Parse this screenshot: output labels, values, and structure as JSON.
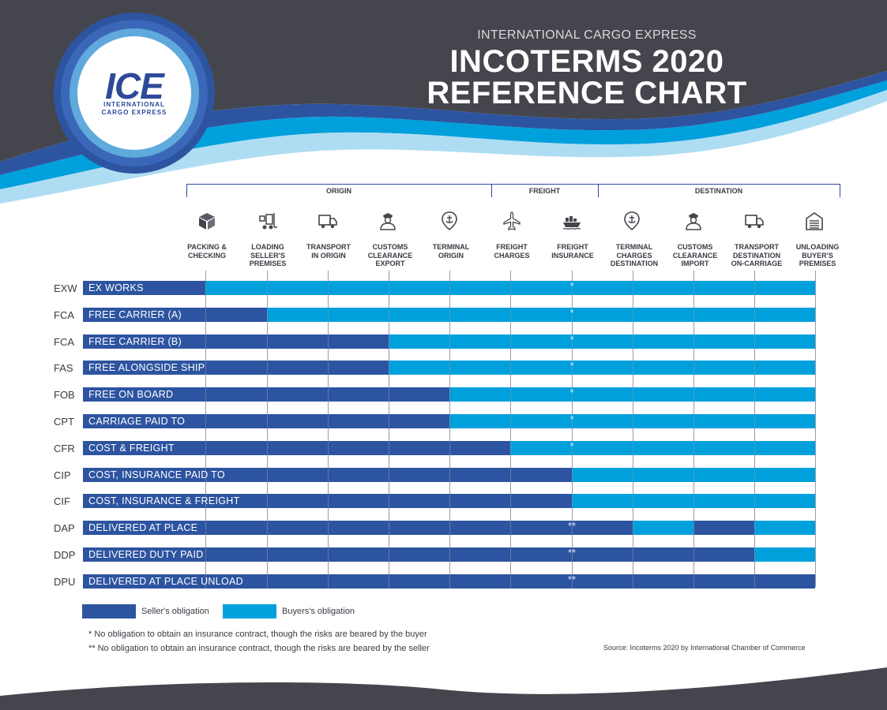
{
  "header": {
    "company": "INTERNATIONAL CARGO EXPRESS",
    "title_line1": "INCOTERMS 2020",
    "title_line2": "REFERENCE CHART"
  },
  "logo": {
    "main": "ICE",
    "sub_line1": "INTERNATIONAL",
    "sub_line2": "CARGO EXPRESS"
  },
  "colors": {
    "seller": "#2d54a0",
    "buyer": "#00a0dc",
    "header_bg": "#45464d",
    "accent_light": "#7fc6ea"
  },
  "groups": [
    {
      "label": "ORIGIN"
    },
    {
      "label": "FREIGHT"
    },
    {
      "label": "DESTINATION"
    }
  ],
  "columns": [
    {
      "label": "PACKING &\nCHECKING",
      "icon": "package-icon"
    },
    {
      "label": "LOADING\nSELLER'S\nPREMISES",
      "icon": "forklift-icon"
    },
    {
      "label": "TRANSPORT\nIN ORIGIN",
      "icon": "truck-icon"
    },
    {
      "label": "CUSTOMS\nCLEARANCE\nEXPORT",
      "icon": "customs-officer-icon"
    },
    {
      "label": "TERMINAL\nORIGIN",
      "icon": "location-anchor-icon"
    },
    {
      "label": "FREIGHT\nCHARGES",
      "icon": "airplane-icon"
    },
    {
      "label": "FREIGHT\nINSURANCE",
      "icon": "ship-icon"
    },
    {
      "label": "TERMINAL\nCHARGES\nDESTINATION",
      "icon": "location-anchor-icon"
    },
    {
      "label": "CUSTOMS\nCLEARANCE\nIMPORT",
      "icon": "customs-officer-icon"
    },
    {
      "label": "TRANSPORT\nDESTINATION\nON-CARRIAGE",
      "icon": "truck-icon"
    },
    {
      "label": "UNLOADING\nBUYER'S\nPREMISES",
      "icon": "warehouse-icon"
    }
  ],
  "rows": [
    {
      "code": "EXW",
      "name": "EX WORKS",
      "mark": "*",
      "cells": [
        "S",
        "B",
        "B",
        "B",
        "B",
        "B",
        "B",
        "B",
        "B",
        "B",
        "B"
      ]
    },
    {
      "code": "FCA",
      "name": "FREE CARRIER (A)",
      "mark": "*",
      "cells": [
        "S",
        "S",
        "B",
        "B",
        "B",
        "B",
        "B",
        "B",
        "B",
        "B",
        "B"
      ]
    },
    {
      "code": "FCA",
      "name": "FREE CARRIER (B)",
      "mark": "*",
      "cells": [
        "S",
        "S",
        "S",
        "S",
        "B",
        "B",
        "B",
        "B",
        "B",
        "B",
        "B"
      ]
    },
    {
      "code": "FAS",
      "name": "FREE ALONGSIDE SHIP",
      "mark": "*",
      "cells": [
        "S",
        "S",
        "S",
        "S",
        "B",
        "B",
        "B",
        "B",
        "B",
        "B",
        "B"
      ]
    },
    {
      "code": "FOB",
      "name": "FREE ON BOARD",
      "mark": "*",
      "cells": [
        "S",
        "S",
        "S",
        "S",
        "S",
        "B",
        "B",
        "B",
        "B",
        "B",
        "B"
      ]
    },
    {
      "code": "CPT",
      "name": "CARRIAGE PAID TO",
      "mark": "*",
      "cells": [
        "S",
        "S",
        "S",
        "S",
        "S",
        "B",
        "B",
        "B",
        "B",
        "B",
        "B"
      ]
    },
    {
      "code": "CFR",
      "name": "COST & FREIGHT",
      "mark": "*",
      "cells": [
        "S",
        "S",
        "S",
        "S",
        "S",
        "S",
        "B",
        "B",
        "B",
        "B",
        "B"
      ]
    },
    {
      "code": "CIP",
      "name": "COST, INSURANCE PAID TO",
      "mark": "",
      "cells": [
        "S",
        "S",
        "S",
        "S",
        "S",
        "S",
        "S",
        "B",
        "B",
        "B",
        "B"
      ]
    },
    {
      "code": "CIF",
      "name": "COST, INSURANCE & FREIGHT",
      "mark": "",
      "cells": [
        "S",
        "S",
        "S",
        "S",
        "S",
        "S",
        "S",
        "B",
        "B",
        "B",
        "B"
      ]
    },
    {
      "code": "DAP",
      "name": "DELIVERED AT PLACE",
      "mark": "**",
      "cells": [
        "S",
        "S",
        "S",
        "S",
        "S",
        "S",
        "S",
        "S",
        "B",
        "S",
        "B"
      ]
    },
    {
      "code": "DDP",
      "name": "DELIVERED DUTY PAID",
      "mark": "**",
      "cells": [
        "S",
        "S",
        "S",
        "S",
        "S",
        "S",
        "S",
        "S",
        "S",
        "S",
        "B"
      ]
    },
    {
      "code": "DPU",
      "name": "DELIVERED AT PLACE UNLOAD",
      "mark": "**",
      "cells": [
        "S",
        "S",
        "S",
        "S",
        "S",
        "S",
        "S",
        "S",
        "S",
        "S",
        "S"
      ]
    }
  ],
  "legend": {
    "seller": "Seller's obligation",
    "buyer": "Buyers's obligation"
  },
  "notes": {
    "note1": "* No obligation to obtain an insurance contract, though the risks are beared by the buyer",
    "note2": "** No obligation to obtain an insurance contract, though the risks are beared by the seller"
  },
  "source": "Source: Incoterms 2020 by International Chamber of Commerce"
}
